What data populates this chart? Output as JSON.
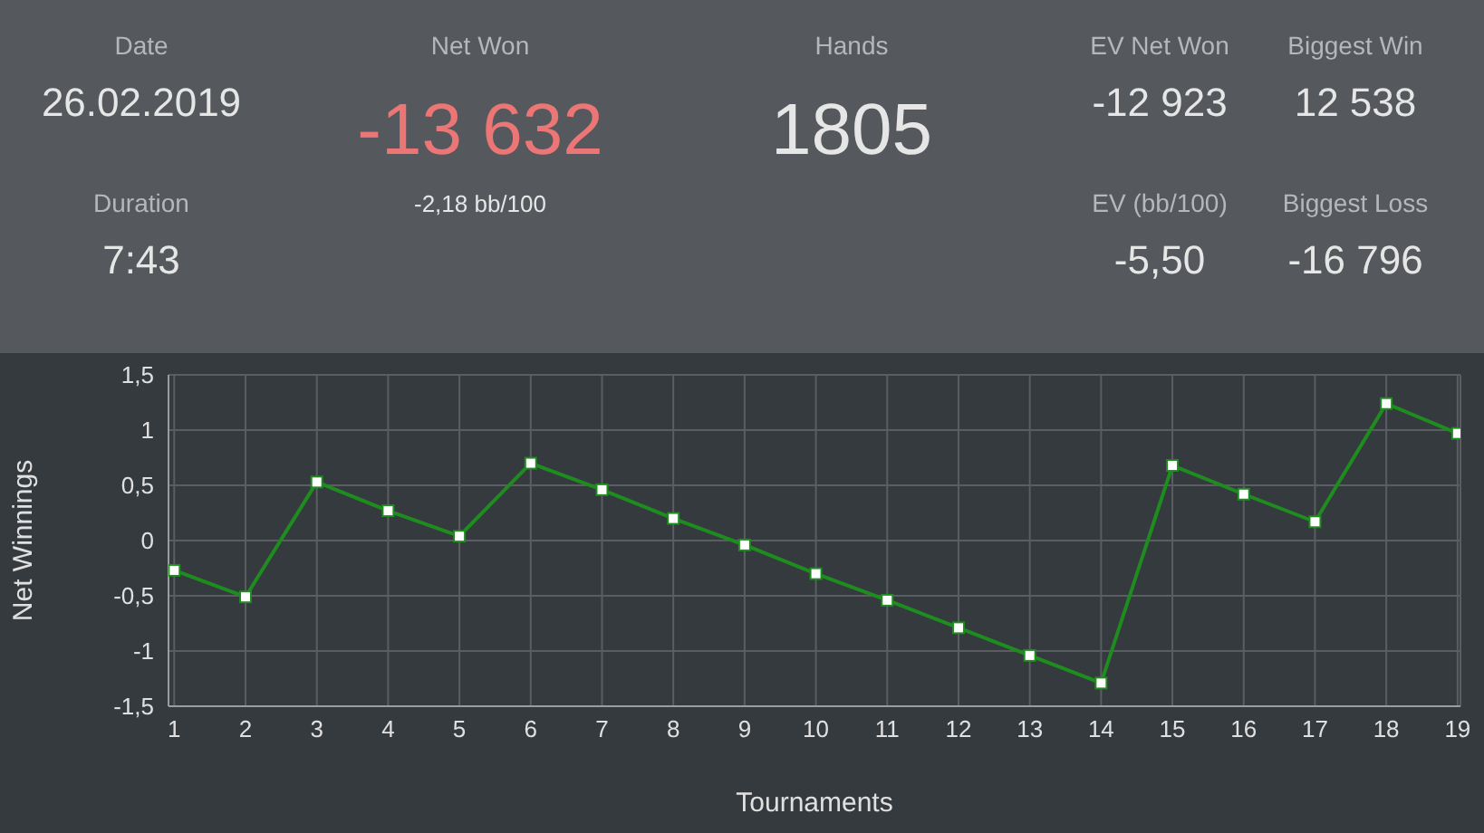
{
  "chart_data": [
    {
      "type": "other",
      "annotations": [
        "Date",
        "26.02.2019",
        "Duration",
        "7:43",
        "Net Won",
        "-13 632",
        "-2,18 bb/100",
        "Hands",
        "1805",
        "EV Net Won",
        "-12 923",
        "EV (bb/100)",
        "-5,50",
        "Biggest Win",
        "12 538",
        "Biggest Loss",
        "-16 796"
      ]
    },
    {
      "type": "line",
      "ylabel": "Net Winnings",
      "xlabel": "Tournaments",
      "x": [
        1,
        2,
        3,
        4,
        5,
        6,
        7,
        8,
        9,
        10,
        11,
        12,
        13,
        14,
        15,
        16,
        17,
        18,
        19
      ],
      "xlim": [
        0.92,
        19.04
      ],
      "xticks": [
        1,
        2,
        3,
        4,
        5,
        6,
        7,
        8,
        9,
        10,
        11,
        12,
        13,
        14,
        15,
        16,
        17,
        18,
        19
      ],
      "series": [
        {
          "color": "#1e8c1e",
          "values": [
            -0.27,
            -0.51,
            0.53,
            0.27,
            0.04,
            0.7,
            0.46,
            0.2,
            -0.04,
            -0.3,
            -0.54,
            -0.79,
            -1.04,
            -1.29,
            0.68,
            0.42,
            0.17,
            1.24,
            0.97
          ]
        }
      ],
      "ylim": [
        -1.5,
        1.5
      ],
      "yticks": [
        {
          "value": -1.5,
          "label": "-1,5"
        },
        {
          "value": -1,
          "label": "-1"
        },
        {
          "value": -0.5,
          "label": "-0,5"
        },
        0,
        {
          "value": 0.5,
          "label": "0,5"
        },
        1,
        {
          "value": 1.5,
          "label": "1,5"
        }
      ],
      "grid": true,
      "marker": "square",
      "line_style": "solid",
      "legend": false
    }
  ]
}
